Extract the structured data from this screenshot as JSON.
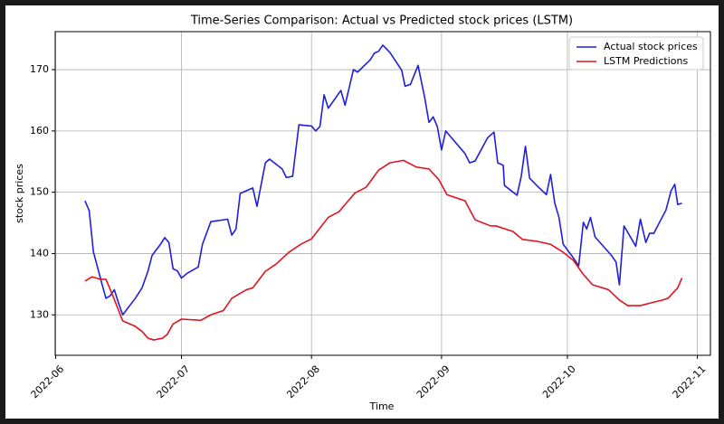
{
  "chart_data": {
    "type": "line",
    "title": "Time-Series Comparison: Actual vs Predicted stock prices (LSTM)",
    "xlabel": "Time",
    "ylabel": "stock prices",
    "xlim": [
      151.9,
      308.1
    ],
    "xticks": [
      {
        "value": 152,
        "label": "2022-06"
      },
      {
        "value": 182,
        "label": "2022-07"
      },
      {
        "value": 213,
        "label": "2022-08"
      },
      {
        "value": 244,
        "label": "2022-09"
      },
      {
        "value": 274,
        "label": "2022-10"
      },
      {
        "value": 305,
        "label": "2022-11"
      }
    ],
    "ylim": [
      123.4,
      176.2
    ],
    "yticks": [
      130,
      140,
      150,
      160,
      170
    ],
    "grid": true,
    "legend": "upper right",
    "series": [
      {
        "name": "Actual stock prices",
        "color": "#1f1fdd",
        "x": [
          159,
          160,
          161,
          163.3,
          164,
          165,
          166,
          167,
          168,
          171,
          172.6,
          174,
          175,
          177,
          178,
          179,
          180,
          181,
          182,
          183.4,
          186,
          187,
          189,
          193,
          194,
          195,
          196,
          199,
          200,
          202,
          203,
          206,
          207,
          208.5,
          210,
          213,
          214,
          215,
          216,
          217,
          220,
          221,
          223,
          224,
          227,
          228,
          229,
          230,
          231.7,
          234.5,
          235.3,
          236.6,
          238.4,
          240,
          241,
          242,
          243,
          244,
          245,
          249.6,
          250.7,
          252,
          255,
          256.5,
          257.4,
          258.7,
          259,
          262,
          263,
          264,
          265,
          266.7,
          269,
          270,
          271,
          272,
          273,
          275,
          276.7,
          277.8,
          278.6,
          279.5,
          280.6,
          284.5,
          285.6,
          286.4,
          287.5,
          290.3,
          291.4,
          292.7,
          293.6,
          294.6,
          297.5,
          298.7,
          299.6,
          300.3,
          301.3
        ],
        "values": [
          148.6,
          147.0,
          140.3,
          134.4,
          132.7,
          133.1,
          134.1,
          131.9,
          130.0,
          132.7,
          134.4,
          137.1,
          139.7,
          141.5,
          142.6,
          141.8,
          137.5,
          137.2,
          136.0,
          136.8,
          137.8,
          141.5,
          145.2,
          145.6,
          143.0,
          144.0,
          149.8,
          150.7,
          147.7,
          154.8,
          155.4,
          153.8,
          152.4,
          152.6,
          161.0,
          160.8,
          160.0,
          160.7,
          165.9,
          163.7,
          166.6,
          164.2,
          170.0,
          169.6,
          171.6,
          172.7,
          173.0,
          174.0,
          172.8,
          169.9,
          167.3,
          167.6,
          170.7,
          165.4,
          161.4,
          162.3,
          160.7,
          156.9,
          160.0,
          156.3,
          154.8,
          155.1,
          158.9,
          159.8,
          154.8,
          154.4,
          151.1,
          149.5,
          152.6,
          157.5,
          152.3,
          151.1,
          149.6,
          152.9,
          148.2,
          145.9,
          141.5,
          139.7,
          138.0,
          145.1,
          144.0,
          145.9,
          142.7,
          139.7,
          138.6,
          134.9,
          144.5,
          141.2,
          145.6,
          141.8,
          143.3,
          143.3,
          147.1,
          150.2,
          151.3,
          148.0,
          148.2
        ]
      },
      {
        "name": "LSTM Predictions",
        "color": "#e0141e",
        "x": [
          159,
          160.7,
          162.6,
          164,
          165.6,
          168,
          170.8,
          172.6,
          174,
          175.4,
          177.5,
          178.6,
          180,
          182,
          186.6,
          189,
          192,
          194,
          197.5,
          199,
          202,
          204.6,
          207.6,
          210.4,
          213,
          217,
          219.5,
          223.4,
          226,
          229,
          231.7,
          234.9,
          238,
          241,
          243.3,
          245.3,
          249.6,
          252,
          255.7,
          257,
          261,
          263.3,
          266.7,
          270,
          272.8,
          275.4,
          277.8,
          280,
          283.8,
          286.4,
          288.4,
          291.4,
          293.6,
          296.6,
          298,
          300.3,
          301.3
        ],
        "values": [
          135.5,
          136.2,
          135.8,
          135.8,
          133.2,
          129.0,
          128.2,
          127.3,
          126.2,
          125.9,
          126.2,
          126.8,
          128.5,
          129.3,
          129.1,
          130.0,
          130.7,
          132.7,
          134.1,
          134.4,
          137.1,
          138.3,
          140.2,
          141.5,
          142.4,
          145.9,
          146.8,
          149.9,
          150.8,
          153.6,
          154.8,
          155.2,
          154.1,
          153.8,
          152.1,
          149.6,
          148.6,
          145.5,
          144.5,
          144.5,
          143.6,
          142.3,
          142.0,
          141.5,
          140.3,
          138.9,
          136.6,
          134.9,
          134.1,
          132.4,
          131.5,
          131.5,
          131.9,
          132.4,
          132.7,
          134.4,
          136.0
        ]
      }
    ]
  }
}
